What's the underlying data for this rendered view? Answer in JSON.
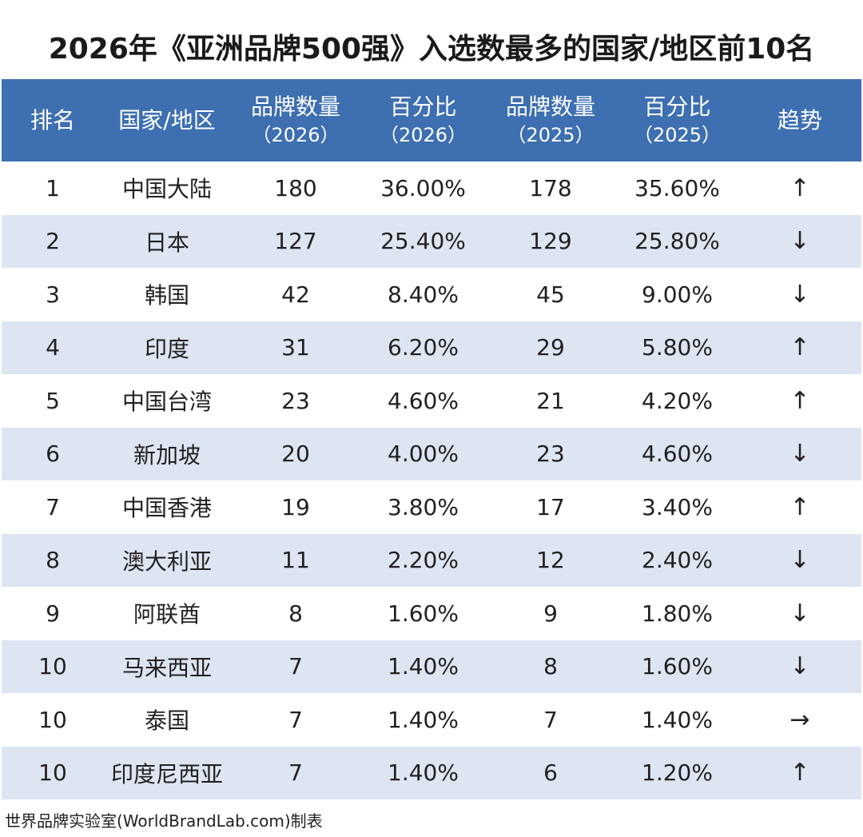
{
  "title": "2026年《亚洲品牌500强》入选数最多的国家/地区前10名",
  "footer": "世界品牌实验室(WorldBrandLab.com)制表",
  "colors": {
    "header_bg": "#3d6fb1",
    "stripe_bg": "#dde5f2"
  },
  "chart_data": {
    "type": "table",
    "title": "2026年《亚洲品牌500强》入选数最多的国家/地区前10名",
    "columns": [
      {
        "line1": "排名",
        "line2": ""
      },
      {
        "line1": "国家/地区",
        "line2": ""
      },
      {
        "line1": "品牌数量",
        "line2": "（2026）"
      },
      {
        "line1": "百分比",
        "line2": "（2026）"
      },
      {
        "line1": "品牌数量",
        "line2": "（2025）"
      },
      {
        "line1": "百分比",
        "line2": "（2025）"
      },
      {
        "line1": "趋势",
        "line2": ""
      }
    ],
    "rows": [
      {
        "rank": "1",
        "region": "中国大陆",
        "count_2026": "180",
        "pct_2026": "36.00%",
        "count_2025": "178",
        "pct_2025": "35.60%",
        "trend": "↑"
      },
      {
        "rank": "2",
        "region": "日本",
        "count_2026": "127",
        "pct_2026": "25.40%",
        "count_2025": "129",
        "pct_2025": "25.80%",
        "trend": "↓"
      },
      {
        "rank": "3",
        "region": "韩国",
        "count_2026": "42",
        "pct_2026": "8.40%",
        "count_2025": "45",
        "pct_2025": "9.00%",
        "trend": "↓"
      },
      {
        "rank": "4",
        "region": "印度",
        "count_2026": "31",
        "pct_2026": "6.20%",
        "count_2025": "29",
        "pct_2025": "5.80%",
        "trend": "↑"
      },
      {
        "rank": "5",
        "region": "中国台湾",
        "count_2026": "23",
        "pct_2026": "4.60%",
        "count_2025": "21",
        "pct_2025": "4.20%",
        "trend": "↑"
      },
      {
        "rank": "6",
        "region": "新加坡",
        "count_2026": "20",
        "pct_2026": "4.00%",
        "count_2025": "23",
        "pct_2025": "4.60%",
        "trend": "↓"
      },
      {
        "rank": "7",
        "region": "中国香港",
        "count_2026": "19",
        "pct_2026": "3.80%",
        "count_2025": "17",
        "pct_2025": "3.40%",
        "trend": "↑"
      },
      {
        "rank": "8",
        "region": "澳大利亚",
        "count_2026": "11",
        "pct_2026": "2.20%",
        "count_2025": "12",
        "pct_2025": "2.40%",
        "trend": "↓"
      },
      {
        "rank": "9",
        "region": "阿联酋",
        "count_2026": "8",
        "pct_2026": "1.60%",
        "count_2025": "9",
        "pct_2025": "1.80%",
        "trend": "↓"
      },
      {
        "rank": "10",
        "region": "马来西亚",
        "count_2026": "7",
        "pct_2026": "1.40%",
        "count_2025": "8",
        "pct_2025": "1.60%",
        "trend": "↓"
      },
      {
        "rank": "10",
        "region": "泰国",
        "count_2026": "7",
        "pct_2026": "1.40%",
        "count_2025": "7",
        "pct_2025": "1.40%",
        "trend": "→"
      },
      {
        "rank": "10",
        "region": "印度尼西亚",
        "count_2026": "7",
        "pct_2026": "1.40%",
        "count_2025": "6",
        "pct_2025": "1.20%",
        "trend": "↑"
      }
    ]
  }
}
